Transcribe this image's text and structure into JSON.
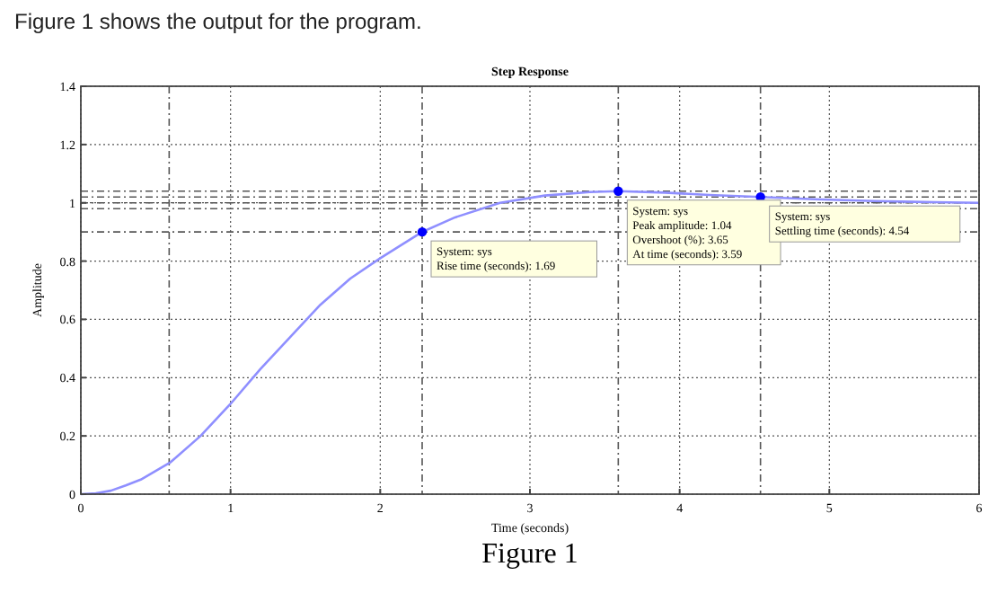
{
  "chart_data": {
    "type": "line",
    "subtitle": "Figure 1 shows the output for the program.",
    "title": "Step Response",
    "xlabel": "Time (seconds)",
    "ylabel": "Amplitude",
    "xlim": [
      0,
      6
    ],
    "xticks": [
      0,
      1,
      2,
      3,
      4,
      5,
      6
    ],
    "ylim": [
      0,
      1.4
    ],
    "yticks": [
      0,
      0.2,
      0.4,
      0.6,
      0.8,
      1,
      1.2,
      1.4
    ],
    "grid": true,
    "series": [
      {
        "color": "#8f8fff",
        "marker": "none",
        "x": [
          0,
          0.1,
          0.2,
          0.3,
          0.4,
          0.5,
          0.6,
          0.8,
          1,
          1.2,
          1.4,
          1.6,
          1.8,
          2,
          2.28,
          2.5,
          2.8,
          3.1,
          3.4,
          3.59,
          3.9,
          4.2,
          4.54,
          4.9,
          5.3,
          5.7,
          6
        ],
        "values": [
          0,
          0.003,
          0.012,
          0.03,
          0.05,
          0.08,
          0.11,
          0.2,
          0.31,
          0.43,
          0.54,
          0.65,
          0.74,
          0.81,
          0.9,
          0.95,
          1.0,
          1.025,
          1.037,
          1.04,
          1.035,
          1.027,
          1.02,
          1.012,
          1.006,
          1.002,
          1.0
        ]
      },
      {
        "type": "scatter",
        "color": "#0000ff",
        "marker": "circle",
        "x": [
          2.28,
          3.59,
          4.54
        ],
        "values": [
          0.9,
          1.04,
          1.02
        ]
      }
    ],
    "ref_lines": [
      {
        "axis": "y",
        "value": 0.9
      },
      {
        "axis": "y",
        "value": 0.98
      },
      {
        "axis": "y",
        "value": 1.0
      },
      {
        "axis": "y",
        "value": 1.02
      },
      {
        "axis": "y",
        "value": 1.04
      },
      {
        "axis": "x",
        "value": 0.59
      },
      {
        "axis": "x",
        "value": 2.28
      },
      {
        "axis": "x",
        "value": 3.59
      },
      {
        "axis": "x",
        "value": 4.54
      }
    ],
    "annotations": [
      {
        "text": "System: sys\nRise time (seconds): 1.69",
        "x": 2.28,
        "y": 0.9
      },
      {
        "text": "System: sys\nPeak amplitude: 1.04\nOvershoot (%): 3.65\nAt time (seconds): 3.59",
        "x": 3.59,
        "y": 1.04
      },
      {
        "text": "System: sys\nSettling time (seconds): 4.54",
        "x": 4.54,
        "y": 1.02
      },
      "Figure 1"
    ]
  }
}
